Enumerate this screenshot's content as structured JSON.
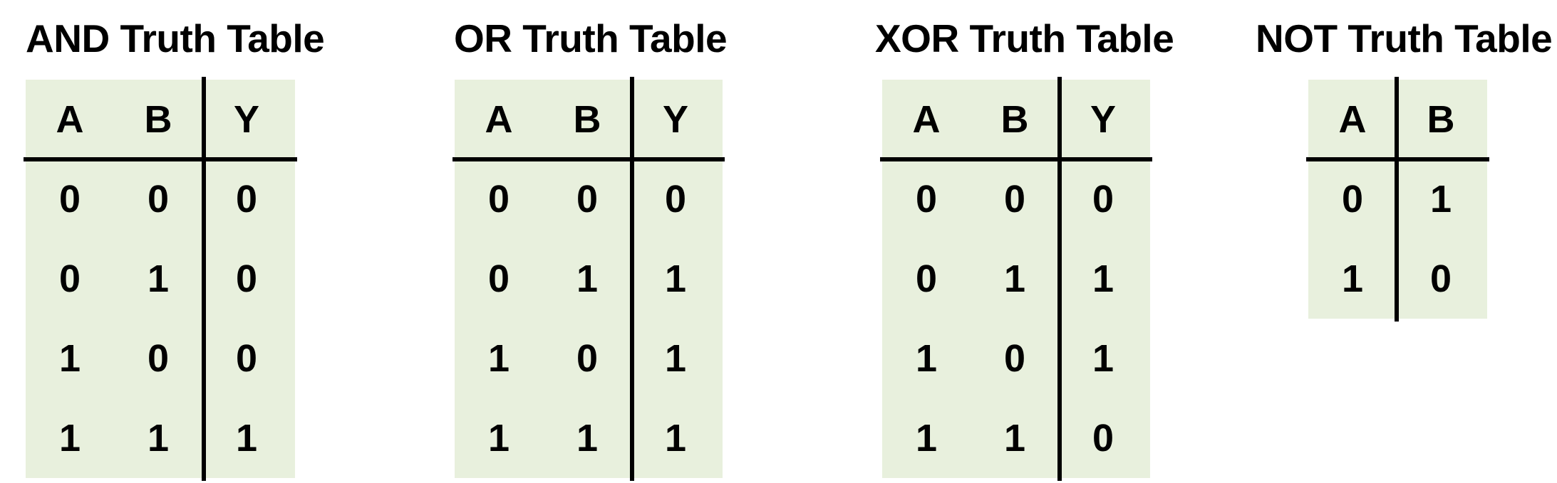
{
  "tables": [
    {
      "title": "AND Truth Table",
      "headers": [
        "A",
        "B",
        "Y"
      ],
      "rows": [
        [
          "0",
          "0",
          "0"
        ],
        [
          "0",
          "1",
          "0"
        ],
        [
          "1",
          "0",
          "0"
        ],
        [
          "1",
          "1",
          "1"
        ]
      ]
    },
    {
      "title": "OR Truth Table",
      "headers": [
        "A",
        "B",
        "Y"
      ],
      "rows": [
        [
          "0",
          "0",
          "0"
        ],
        [
          "0",
          "1",
          "1"
        ],
        [
          "1",
          "0",
          "1"
        ],
        [
          "1",
          "1",
          "1"
        ]
      ]
    },
    {
      "title": "XOR Truth Table",
      "headers": [
        "A",
        "B",
        "Y"
      ],
      "rows": [
        [
          "0",
          "0",
          "0"
        ],
        [
          "0",
          "1",
          "1"
        ],
        [
          "1",
          "0",
          "1"
        ],
        [
          "1",
          "1",
          "0"
        ]
      ]
    },
    {
      "title": "NOT Truth Table",
      "headers": [
        "A",
        "B"
      ],
      "rows": [
        [
          "0",
          "1"
        ],
        [
          "1",
          "0"
        ]
      ]
    }
  ],
  "colors": {
    "table_fill": "#e8f0dd",
    "rule": "#000000",
    "text": "#000000"
  }
}
